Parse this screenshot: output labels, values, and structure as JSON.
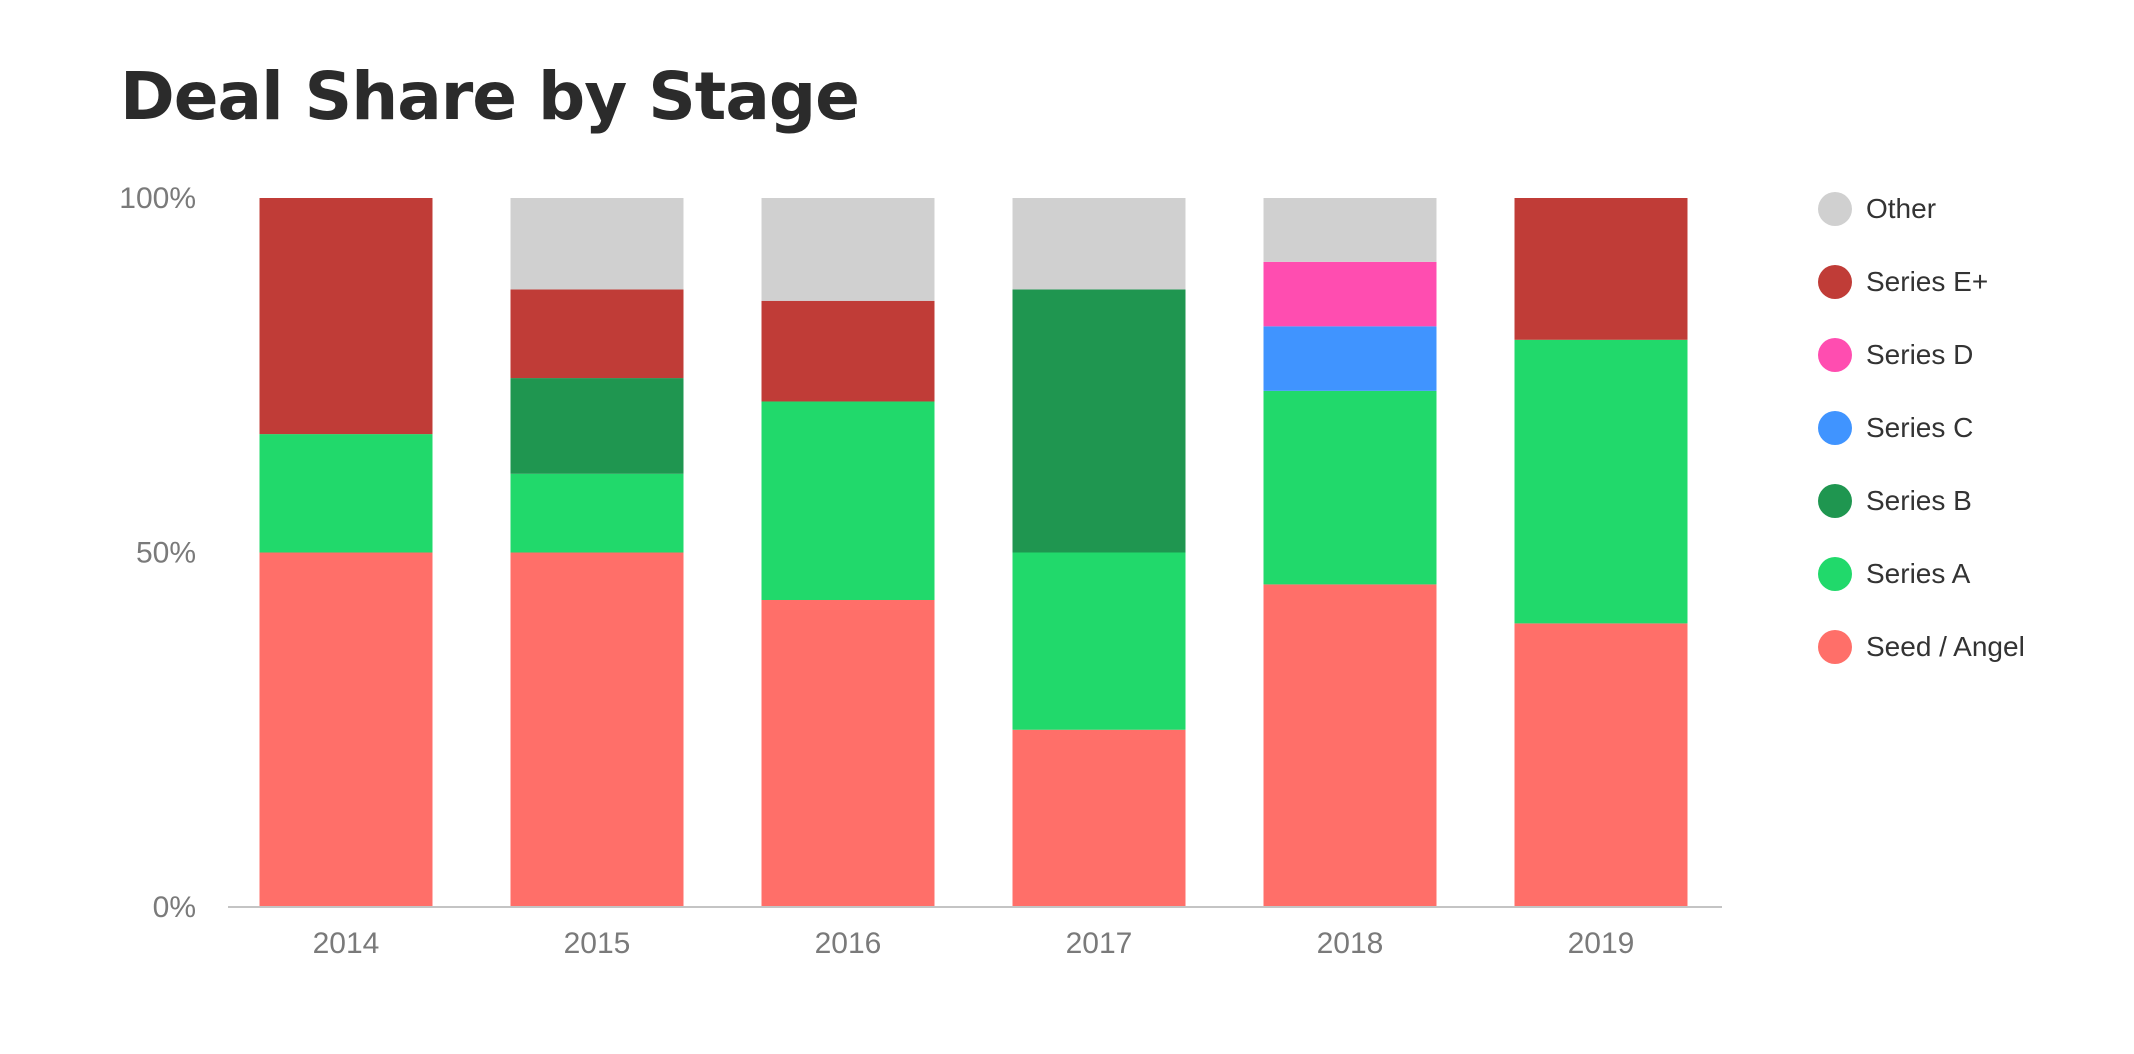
{
  "chart_data": {
    "type": "bar",
    "stacked": true,
    "title": "Deal Share by Stage",
    "categories": [
      "2014",
      "2015",
      "2016",
      "2017",
      "2018",
      "2019"
    ],
    "ylim": [
      0,
      100
    ],
    "yticks": [
      {
        "value": 0,
        "label": "0%"
      },
      {
        "value": 50,
        "label": "50%"
      },
      {
        "value": 100,
        "label": "100%"
      }
    ],
    "grid": false,
    "legend_position": "right",
    "series": [
      {
        "name": "Seed / Angel",
        "color": "#ff6f69",
        "values": [
          50,
          50,
          43.3,
          25,
          45.5,
          40
        ]
      },
      {
        "name": "Series A",
        "color": "#21d96b",
        "values": [
          16.7,
          11.1,
          28,
          25,
          27.3,
          40
        ]
      },
      {
        "name": "Series B",
        "color": "#1f9650",
        "values": [
          0,
          13.5,
          0,
          37.1,
          0,
          0
        ]
      },
      {
        "name": "Series C",
        "color": "#4094ff",
        "values": [
          0,
          0,
          0,
          0,
          9.1,
          0
        ]
      },
      {
        "name": "Series D",
        "color": "#ff4db0",
        "values": [
          0,
          0,
          0,
          0,
          9.1,
          0
        ]
      },
      {
        "name": "Series E+",
        "color": "#c03c37",
        "values": [
          33.3,
          12.5,
          14.2,
          0,
          0,
          20
        ]
      },
      {
        "name": "Other",
        "color": "#d0d0d0",
        "values": [
          0,
          12.9,
          14.5,
          12.9,
          9,
          0
        ]
      }
    ]
  }
}
